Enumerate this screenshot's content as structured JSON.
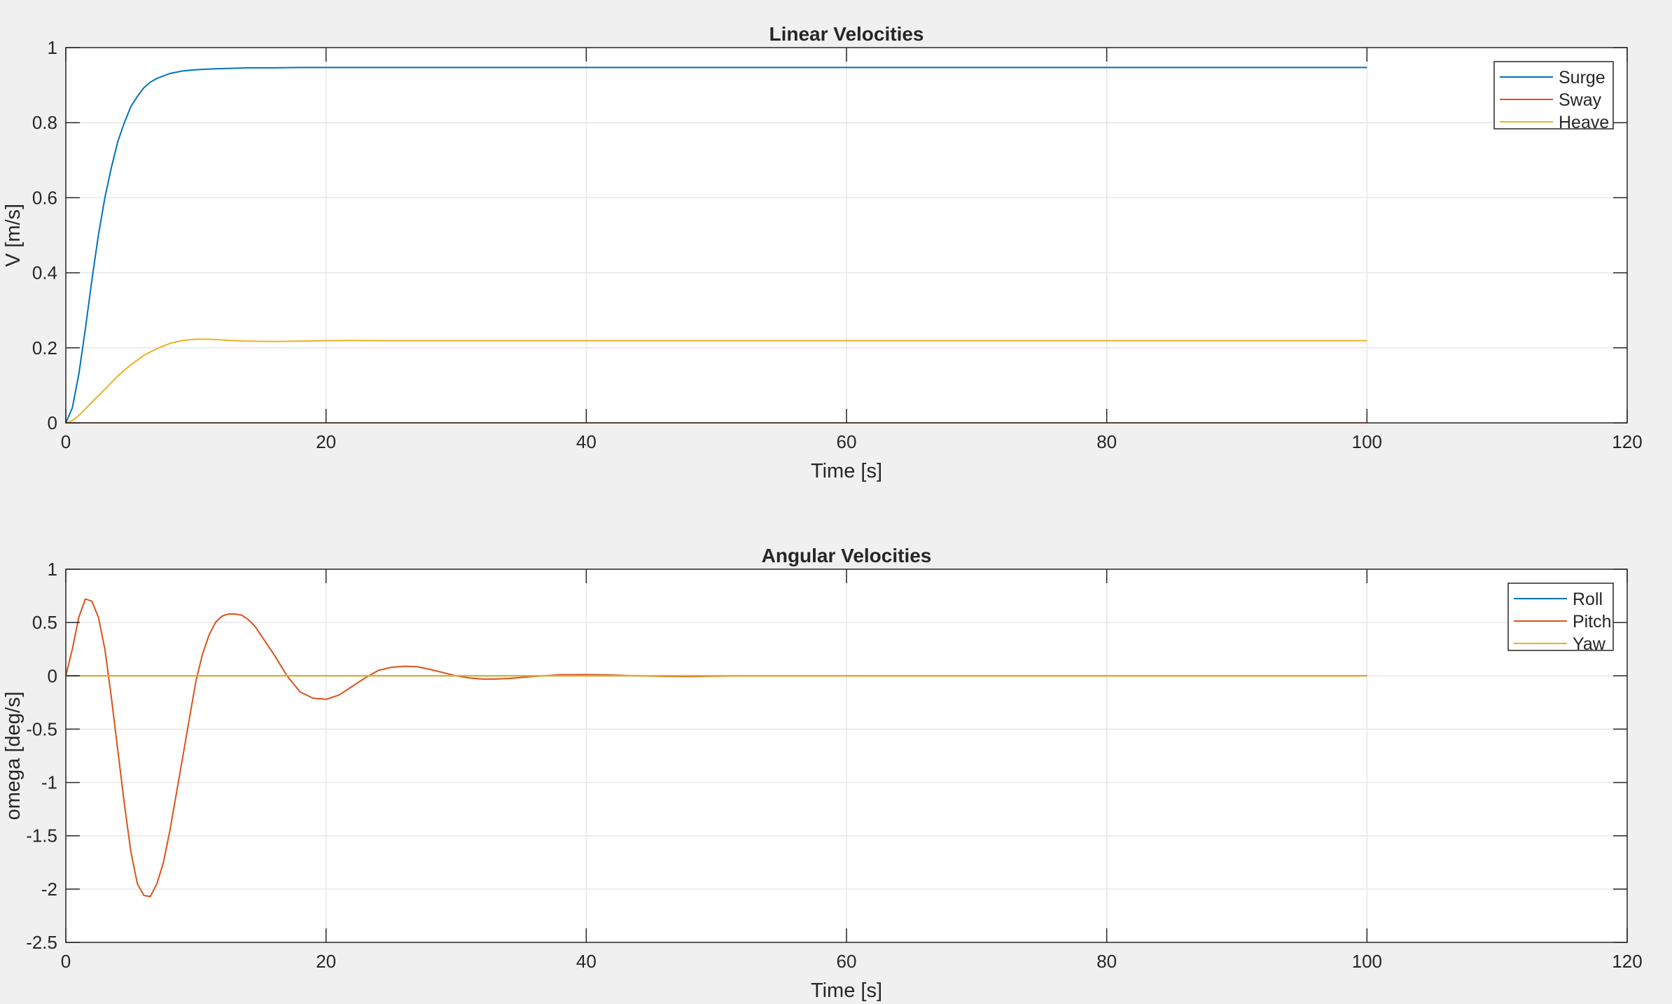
{
  "figure": {
    "background": "#f0f0f0"
  },
  "chart_data": [
    {
      "type": "line",
      "title": "Linear Velocities",
      "xlabel": "Time [s]",
      "ylabel": "V [m/s]",
      "xlim": [
        0,
        120
      ],
      "ylim": [
        0,
        1
      ],
      "xticks": [
        0,
        20,
        40,
        60,
        80,
        100,
        120
      ],
      "yticks": [
        0,
        0.2,
        0.4,
        0.6,
        0.8,
        1
      ],
      "xtick_labels": [
        "0",
        "20",
        "40",
        "60",
        "80",
        "100",
        "120"
      ],
      "ytick_labels": [
        "0",
        "0.2",
        "0.4",
        "0.6",
        "0.8",
        "1"
      ],
      "grid": true,
      "legend": "top-right",
      "series": [
        {
          "name": "Surge",
          "color": "#0072bd",
          "x": [
            0,
            0.5,
            1,
            1.5,
            2,
            2.5,
            3,
            3.5,
            4,
            4.5,
            5,
            5.5,
            6,
            6.5,
            7,
            8,
            9,
            10,
            11,
            12,
            13,
            14,
            16,
            18,
            20,
            25,
            30,
            40,
            50,
            60,
            70,
            80,
            90,
            100
          ],
          "y": [
            0,
            0.04,
            0.13,
            0.25,
            0.38,
            0.5,
            0.6,
            0.68,
            0.75,
            0.8,
            0.843,
            0.87,
            0.893,
            0.908,
            0.918,
            0.931,
            0.938,
            0.941,
            0.943,
            0.944,
            0.945,
            0.946,
            0.946,
            0.947,
            0.947,
            0.947,
            0.947,
            0.947,
            0.947,
            0.947,
            0.947,
            0.947,
            0.947,
            0.947
          ]
        },
        {
          "name": "Sway",
          "color": "#d95319",
          "x": [
            0,
            100
          ],
          "y": [
            0,
            0
          ]
        },
        {
          "name": "Heave",
          "color": "#edb120",
          "x": [
            0,
            0.5,
            1,
            2,
            3,
            4,
            5,
            6,
            7,
            8,
            9,
            10,
            11,
            12,
            13,
            14,
            16,
            18,
            20,
            22,
            25,
            30,
            40,
            50,
            60,
            70,
            80,
            90,
            100
          ],
          "y": [
            0,
            0.006,
            0.02,
            0.055,
            0.09,
            0.125,
            0.155,
            0.18,
            0.198,
            0.212,
            0.22,
            0.223,
            0.223,
            0.221,
            0.219,
            0.218,
            0.217,
            0.218,
            0.219,
            0.2195,
            0.219,
            0.219,
            0.219,
            0.219,
            0.219,
            0.219,
            0.219,
            0.219,
            0.219
          ]
        }
      ]
    },
    {
      "type": "line",
      "title": "Angular Velocities",
      "xlabel": "Time [s]",
      "ylabel": "omega [deg/s]",
      "xlim": [
        0,
        120
      ],
      "ylim": [
        -2.5,
        1
      ],
      "xticks": [
        0,
        20,
        40,
        60,
        80,
        100,
        120
      ],
      "yticks": [
        -2.5,
        -2,
        -1.5,
        -1,
        -0.5,
        0,
        0.5,
        1
      ],
      "xtick_labels": [
        "0",
        "20",
        "40",
        "60",
        "80",
        "100",
        "120"
      ],
      "ytick_labels": [
        "-2.5",
        "-2",
        "-1.5",
        "-1",
        "-0.5",
        "0",
        "0.5",
        "1"
      ],
      "grid": true,
      "legend": "top-right",
      "series": [
        {
          "name": "Roll",
          "color": "#0072bd",
          "x": [
            0,
            100
          ],
          "y": [
            0,
            0
          ]
        },
        {
          "name": "Pitch",
          "color": "#d95319",
          "x": [
            0,
            0.5,
            1,
            1.5,
            2,
            2.5,
            3,
            3.5,
            4,
            4.5,
            5,
            5.5,
            6,
            6.5,
            7,
            7.5,
            8,
            8.5,
            9,
            9.5,
            10,
            10.5,
            11,
            11.5,
            12,
            12.5,
            13,
            13.5,
            14,
            14.5,
            15,
            16,
            17,
            18,
            19,
            20,
            21,
            22,
            23,
            24,
            25,
            26,
            27,
            28,
            29,
            30,
            31,
            32,
            33,
            34,
            35,
            36,
            38,
            40,
            42,
            44,
            46,
            48,
            50,
            52,
            55,
            60,
            70,
            80,
            90,
            100
          ],
          "y": [
            0,
            0.25,
            0.55,
            0.72,
            0.7,
            0.55,
            0.25,
            -0.2,
            -0.7,
            -1.2,
            -1.65,
            -1.95,
            -2.06,
            -2.07,
            -1.95,
            -1.75,
            -1.45,
            -1.1,
            -0.75,
            -0.4,
            -0.05,
            0.2,
            0.38,
            0.5,
            0.56,
            0.58,
            0.58,
            0.57,
            0.53,
            0.47,
            0.38,
            0.2,
            0.0,
            -0.15,
            -0.21,
            -0.22,
            -0.18,
            -0.1,
            -0.02,
            0.05,
            0.08,
            0.09,
            0.085,
            0.06,
            0.03,
            0.0,
            -0.02,
            -0.03,
            -0.03,
            -0.025,
            -0.015,
            -0.005,
            0.01,
            0.012,
            0.008,
            0.0,
            -0.005,
            -0.006,
            -0.003,
            0.0,
            0.0,
            0.0,
            0.0,
            0.0,
            0.0,
            0.0
          ]
        },
        {
          "name": "Yaw",
          "color": "#edb120",
          "x": [
            0,
            100
          ],
          "y": [
            0,
            0
          ]
        }
      ]
    }
  ]
}
